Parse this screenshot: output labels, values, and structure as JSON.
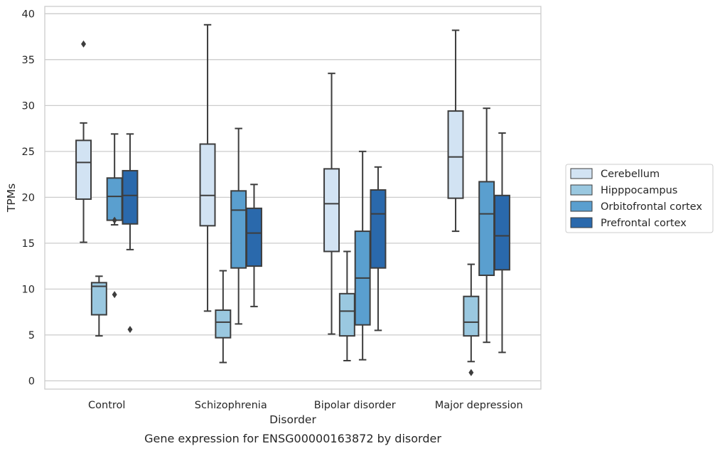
{
  "chart_data": {
    "type": "box",
    "caption": "Gene expression for ENSG00000163872 by disorder",
    "xlabel": "Disorder",
    "ylabel": "TPMs",
    "ylim": [
      -0.9,
      40.8
    ],
    "yticks": [
      0,
      5,
      10,
      15,
      20,
      25,
      30,
      35,
      40
    ],
    "grid": "horizontal",
    "legend_position": "right",
    "categories": [
      "Control",
      "Schizophrenia",
      "Bipolar disorder",
      "Major depression"
    ],
    "series": [
      {
        "name": "Cerebellum",
        "color": "#d2e3f3",
        "boxes": [
          {
            "whislo": 15.1,
            "q1": 19.8,
            "med": 23.8,
            "q3": 26.2,
            "whishi": 28.1,
            "fliers": [
              36.7
            ]
          },
          {
            "whislo": 7.6,
            "q1": 16.9,
            "med": 20.2,
            "q3": 25.8,
            "whishi": 38.8,
            "fliers": []
          },
          {
            "whislo": 5.1,
            "q1": 14.1,
            "med": 19.3,
            "q3": 23.1,
            "whishi": 33.5,
            "fliers": []
          },
          {
            "whislo": 16.3,
            "q1": 19.9,
            "med": 24.4,
            "q3": 29.4,
            "whishi": 38.2,
            "fliers": []
          }
        ]
      },
      {
        "name": "Hipppocampus",
        "color": "#9ac8e0",
        "boxes": [
          {
            "whislo": 4.9,
            "q1": 7.2,
            "med": 10.3,
            "q3": 10.7,
            "whishi": 11.4,
            "fliers": []
          },
          {
            "whislo": 2.0,
            "q1": 4.7,
            "med": 6.4,
            "q3": 7.7,
            "whishi": 12.0,
            "fliers": []
          },
          {
            "whislo": 2.2,
            "q1": 4.9,
            "med": 7.6,
            "q3": 9.5,
            "whishi": 14.1,
            "fliers": []
          },
          {
            "whislo": 2.1,
            "q1": 4.9,
            "med": 6.4,
            "q3": 9.2,
            "whishi": 12.7,
            "fliers": [
              0.9
            ]
          }
        ]
      },
      {
        "name": "Orbitofrontal cortex",
        "color": "#5a9fcf",
        "boxes": [
          {
            "whislo": 17.0,
            "q1": 17.5,
            "med": 20.1,
            "q3": 22.1,
            "whishi": 26.9,
            "fliers": [
              17.5,
              9.4
            ]
          },
          {
            "whislo": 6.2,
            "q1": 12.3,
            "med": 18.6,
            "q3": 20.7,
            "whishi": 27.5,
            "fliers": []
          },
          {
            "whislo": 2.3,
            "q1": 6.1,
            "med": 11.2,
            "q3": 16.3,
            "whishi": 25.0,
            "fliers": []
          },
          {
            "whislo": 4.2,
            "q1": 11.5,
            "med": 18.2,
            "q3": 21.7,
            "whishi": 29.7,
            "fliers": []
          }
        ]
      },
      {
        "name": "Prefrontal cortex",
        "color": "#2a69ac",
        "boxes": [
          {
            "whislo": 14.3,
            "q1": 17.1,
            "med": 20.2,
            "q3": 22.9,
            "whishi": 26.9,
            "fliers": [
              5.6
            ]
          },
          {
            "whislo": 8.1,
            "q1": 12.5,
            "med": 16.1,
            "q3": 18.8,
            "whishi": 21.4,
            "fliers": []
          },
          {
            "whislo": 5.5,
            "q1": 12.3,
            "med": 18.2,
            "q3": 20.8,
            "whishi": 23.3,
            "fliers": []
          },
          {
            "whislo": 3.1,
            "q1": 12.1,
            "med": 15.8,
            "q3": 20.2,
            "whishi": 27.0,
            "fliers": []
          }
        ]
      }
    ]
  }
}
